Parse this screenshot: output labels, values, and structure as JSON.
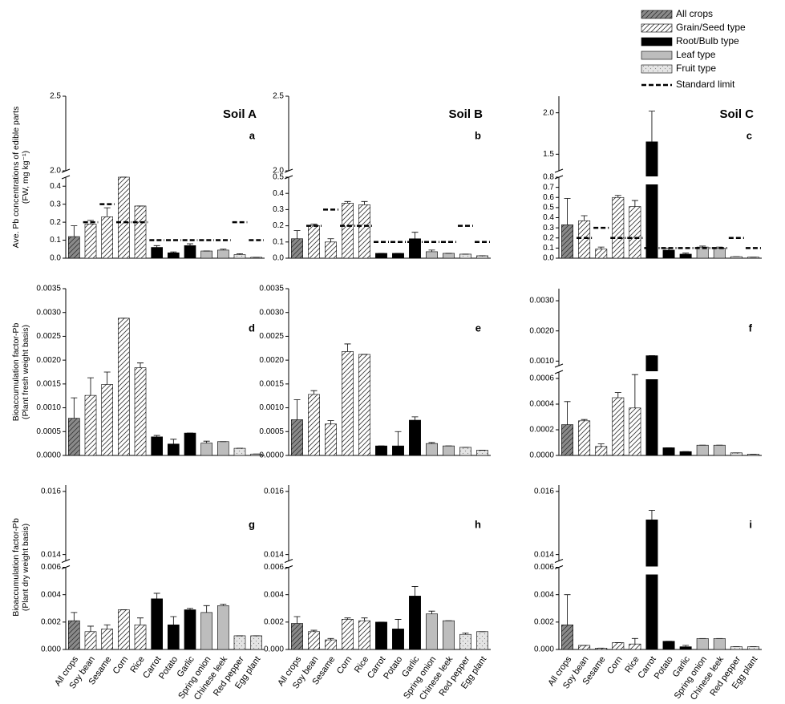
{
  "legend": {
    "items": [
      {
        "name": "All crops",
        "color": "#8a8a8a",
        "pattern": "hatch"
      },
      {
        "name": "Grain/Seed type",
        "color": "#ffffff",
        "pattern": "hatch"
      },
      {
        "name": "Root/Bulb type",
        "color": "#000000",
        "pattern": "solid"
      },
      {
        "name": "Leaf type",
        "color": "#bdbdbd",
        "pattern": "solid"
      },
      {
        "name": "Fruit type",
        "color": "#e4e4e4",
        "pattern": "dots"
      },
      {
        "name": "Standard limit",
        "color": "#000000",
        "pattern": "dash"
      }
    ]
  },
  "crop_types": [
    0,
    1,
    1,
    1,
    1,
    2,
    2,
    2,
    3,
    3,
    4,
    4
  ],
  "chart_data": [
    {
      "type": "bar",
      "title": "Soil A",
      "letter": "a",
      "ylabel": [
        "Ave. Pb concentrations of edible parts",
        "(FW, mg kg⁻¹)"
      ],
      "segments": [
        {
          "ylim": [
            0,
            0.45
          ],
          "yticks": [
            {
              "value": 0,
              "label": "0.0"
            },
            0.1,
            0.2,
            0.3,
            0.4
          ]
        },
        {
          "ylim": [
            2.0,
            2.5
          ],
          "yticks": [
            {
              "value": 2,
              "label": "2.0"
            },
            2.5
          ]
        }
      ],
      "values": [
        0.12,
        0.19,
        0.23,
        0.45,
        0.29,
        0.06,
        0.03,
        0.07,
        0.04,
        0.045,
        0.02,
        0.005
      ],
      "errors": [
        0.06,
        0.02,
        0.05,
        0.03,
        0,
        0.01,
        0.005,
        0.01,
        0,
        0.005,
        0.005,
        0
      ],
      "standard_limit": [
        null,
        0.2,
        0.3,
        0.2,
        0.2,
        0.1,
        0.1,
        0.1,
        0.1,
        0.1,
        0.2,
        0.1
      ]
    },
    {
      "type": "bar",
      "title": "Soil B",
      "letter": "b",
      "segments": [
        {
          "ylim": [
            0,
            0.5
          ],
          "yticks": [
            {
              "value": 0,
              "label": "0.0"
            },
            0.1,
            0.2,
            0.3,
            0.4,
            0.5
          ]
        },
        {
          "ylim": [
            2.0,
            2.5
          ],
          "yticks": [
            {
              "value": 2,
              "label": "2.0"
            },
            2.5
          ]
        }
      ],
      "values": [
        0.12,
        0.2,
        0.1,
        0.34,
        0.33,
        0.03,
        0.03,
        0.12,
        0.04,
        0.03,
        0.025,
        0.015
      ],
      "errors": [
        0.05,
        0.01,
        0.02,
        0.01,
        0.02,
        0,
        0,
        0.04,
        0.01,
        0,
        0,
        0
      ],
      "standard_limit": [
        null,
        0.2,
        0.3,
        0.2,
        0.2,
        0.1,
        0.1,
        0.1,
        0.1,
        0.1,
        0.2,
        0.1
      ]
    },
    {
      "type": "bar",
      "title": "Soil C",
      "letter": "c",
      "segments": [
        {
          "ylim": [
            0,
            0.8
          ],
          "yticks": [
            {
              "value": 0,
              "label": "0.0"
            },
            0.1,
            0.2,
            0.3,
            0.4,
            0.5,
            0.6,
            0.7,
            0.8
          ]
        },
        {
          "ylim": [
            1.3,
            2.2
          ],
          "yticks": [
            1.5,
            {
              "value": 2,
              "label": "2.0"
            }
          ]
        }
      ],
      "values": [
        0.33,
        0.37,
        0.09,
        0.6,
        0.51,
        1.65,
        0.08,
        0.04,
        0.11,
        0.1,
        0.015,
        0.01
      ],
      "errors": [
        0.26,
        0.05,
        0.02,
        0.02,
        0.06,
        0.37,
        0.02,
        0.01,
        0.01,
        0.01,
        0,
        0
      ],
      "standard_limit": [
        null,
        0.2,
        0.3,
        0.2,
        0.2,
        0.1,
        0.1,
        0.1,
        0.1,
        0.1,
        0.2,
        0.1
      ]
    },
    {
      "type": "bar",
      "letter": "d",
      "ylabel": [
        "Bioaccumulation factor-Pb",
        "(Plant fresh weight basis)"
      ],
      "segments": [
        {
          "ylim": [
            0,
            0.0035
          ],
          "yticks": [
            {
              "value": 0,
              "label": "0.0000"
            },
            0.0005,
            {
              "value": 0.001,
              "label": "0.0010"
            },
            0.0015,
            {
              "value": 0.002,
              "label": "0.0020"
            },
            0.0025,
            {
              "value": 0.003,
              "label": "0.0030"
            },
            0.0035
          ]
        }
      ],
      "values": [
        0.00078,
        0.00126,
        0.00149,
        0.00288,
        0.00184,
        0.00039,
        0.00024,
        0.00047,
        0.00026,
        0.00029,
        0.00015,
        3e-05
      ],
      "errors": [
        0.00043,
        0.00037,
        0.00026,
        0,
        0.0001,
        3e-05,
        0.0001,
        0,
        4e-05,
        0,
        0,
        0
      ]
    },
    {
      "type": "bar",
      "letter": "e",
      "segments": [
        {
          "ylim": [
            0,
            0.0035
          ],
          "yticks": [
            {
              "value": 0,
              "label": "0.0000"
            },
            0.0005,
            {
              "value": 0.001,
              "label": "0.0010"
            },
            0.0015,
            {
              "value": 0.002,
              "label": "0.0020"
            },
            0.0025,
            {
              "value": 0.003,
              "label": "0.0030"
            },
            0.0035
          ]
        }
      ],
      "values": [
        0.00075,
        0.00128,
        0.00066,
        0.00218,
        0.00212,
        0.0002,
        0.0002,
        0.00074,
        0.00025,
        0.0002,
        0.00017,
        0.00011
      ],
      "errors": [
        0.00042,
        8e-05,
        7e-05,
        0.00016,
        0,
        0,
        0.0003,
        7e-05,
        2e-05,
        0,
        0,
        0
      ]
    },
    {
      "type": "bar",
      "letter": "f",
      "segments": [
        {
          "ylim": [
            0,
            0.00065
          ],
          "yticks": [
            {
              "value": 0,
              "label": "0.0000"
            },
            0.0002,
            0.0004,
            0.0006
          ]
        },
        {
          "ylim": [
            0.00085,
            0.0034
          ],
          "yticks": [
            {
              "value": 0.001,
              "label": "0.0010"
            },
            {
              "value": 0.002,
              "label": "0.0020"
            },
            {
              "value": 0.003,
              "label": "0.0030"
            }
          ]
        }
      ],
      "values": [
        0.00024,
        0.00027,
        7e-05,
        0.00045,
        0.00037,
        0.00118,
        6e-05,
        3e-05,
        8e-05,
        8e-05,
        2e-05,
        1e-05
      ],
      "errors": [
        0.00018,
        1e-05,
        2e-05,
        4e-05,
        0.00026,
        0,
        0,
        0,
        0,
        0,
        0,
        0
      ]
    },
    {
      "type": "bar",
      "letter": "g",
      "ylabel": [
        "Bioaccumulation factor-Pb",
        "(Plant dry weight basis)"
      ],
      "categories": [
        "All crops",
        "Soy bean",
        "Sesame",
        "Corn",
        "Rice",
        "Carrot",
        "Potato",
        "Garlic",
        "Spring onion",
        "Chinese leek",
        "Red pepper",
        "Egg plant"
      ],
      "segments": [
        {
          "ylim": [
            0,
            0.006
          ],
          "yticks": [
            {
              "value": 0,
              "label": "0.000"
            },
            0.002,
            0.004,
            0.006
          ]
        },
        {
          "ylim": [
            0.0138,
            0.0162
          ],
          "yticks": [
            0.014,
            0.016
          ]
        }
      ],
      "values": [
        0.0021,
        0.0013,
        0.0015,
        0.0029,
        0.0018,
        0.0037,
        0.0018,
        0.0029,
        0.0027,
        0.0032,
        0.001,
        0.001
      ],
      "errors": [
        0.0006,
        0.0004,
        0.0003,
        0,
        0.0005,
        0.0004,
        0.0006,
        0.0001,
        0.0005,
        0.0001,
        0,
        0
      ]
    },
    {
      "type": "bar",
      "letter": "h",
      "categories": [
        "All crops",
        "Soy bean",
        "Sesame",
        "Corn",
        "Rice",
        "Carrot",
        "Potato",
        "Garlic",
        "Spring onion",
        "Chinese leek",
        "Red pepper",
        "Egg plant"
      ],
      "segments": [
        {
          "ylim": [
            0,
            0.006
          ],
          "yticks": [
            {
              "value": 0,
              "label": "0.000"
            },
            0.002,
            0.004,
            0.006
          ]
        },
        {
          "ylim": [
            0.0138,
            0.0162
          ],
          "yticks": [
            0.014,
            0.016
          ]
        }
      ],
      "values": [
        0.0019,
        0.0013,
        0.0007,
        0.0022,
        0.0021,
        0.002,
        0.0015,
        0.0039,
        0.0026,
        0.0021,
        0.0011,
        0.0013
      ],
      "errors": [
        0.0005,
        0.0001,
        0.0001,
        0.0001,
        0.0002,
        0,
        0.0007,
        0.0007,
        0.0002,
        0,
        0.0001,
        0
      ]
    },
    {
      "type": "bar",
      "letter": "i",
      "categories": [
        "All crops",
        "Soy bean",
        "Sesame",
        "Corn",
        "Rice",
        "Carrot",
        "Potato",
        "Garlic",
        "Spring onion",
        "Chinese leek",
        "Red pepper",
        "Egg plant"
      ],
      "segments": [
        {
          "ylim": [
            0,
            0.006
          ],
          "yticks": [
            {
              "value": 0,
              "label": "0.000"
            },
            0.002,
            0.004,
            0.006
          ]
        },
        {
          "ylim": [
            0.0138,
            0.0162
          ],
          "yticks": [
            0.014,
            0.016
          ]
        }
      ],
      "values": [
        0.0018,
        0.0003,
        0.0001,
        0.0005,
        0.0004,
        0.0151,
        0.0006,
        0.0002,
        0.0008,
        0.0008,
        0.0002,
        0.0002
      ],
      "errors": [
        0.0022,
        0,
        0,
        0,
        0.0004,
        0.0003,
        0,
        0.0001,
        0,
        0,
        0,
        0
      ]
    }
  ]
}
